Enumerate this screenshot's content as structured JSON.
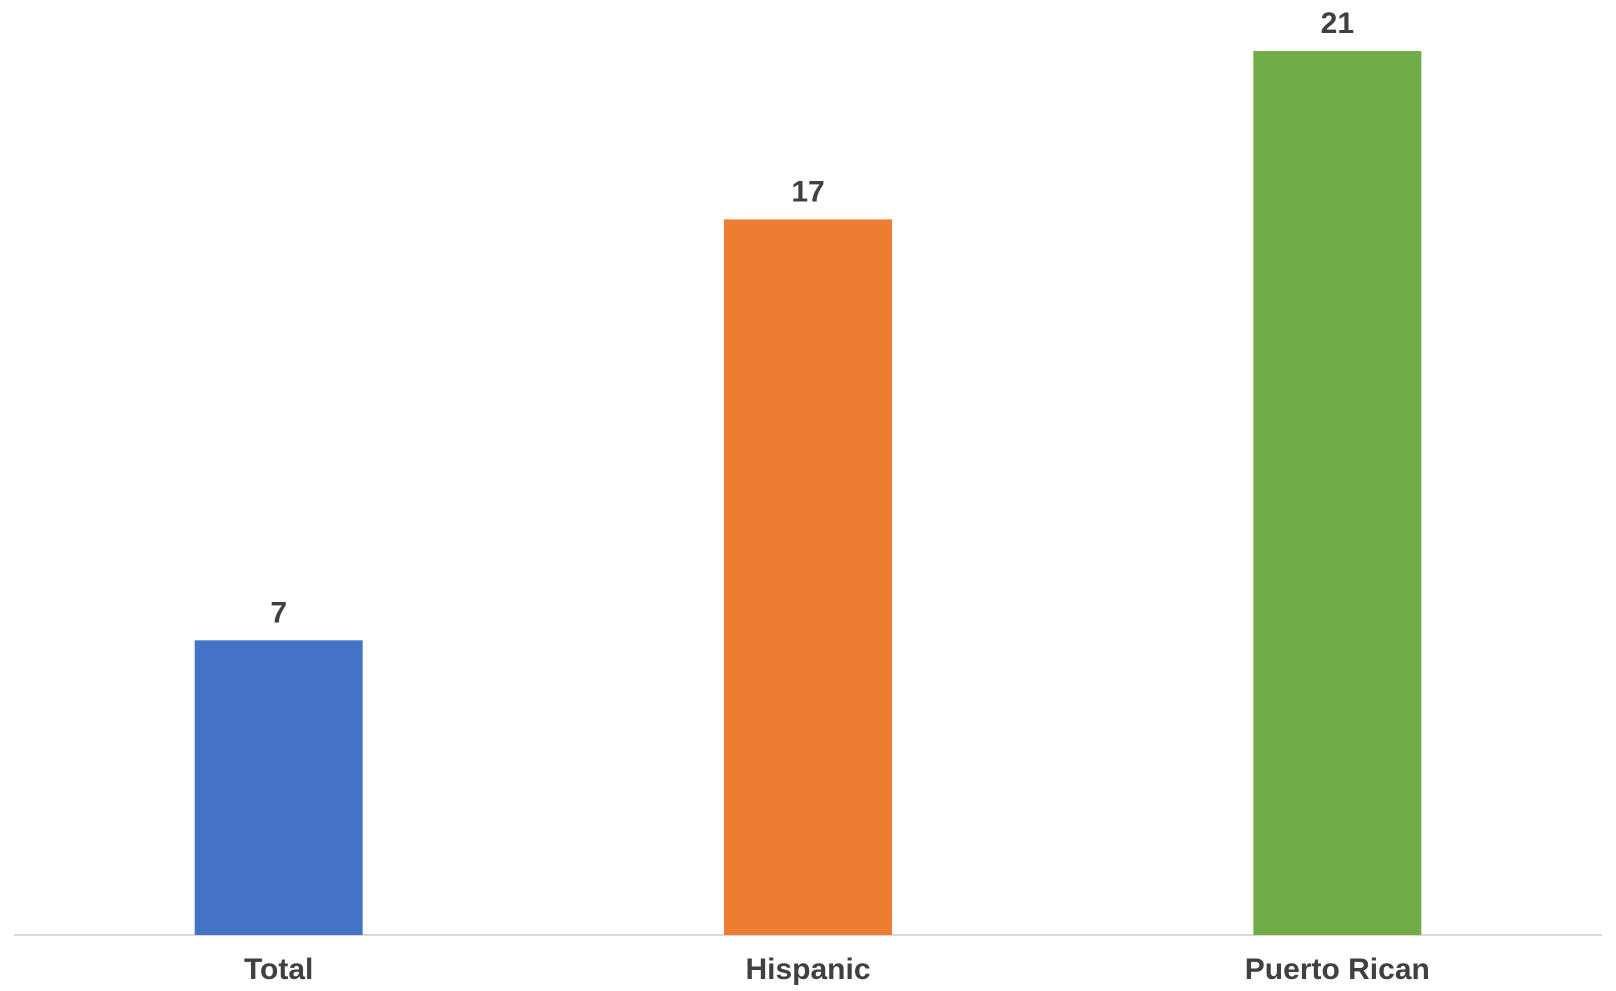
{
  "chart_data": {
    "type": "bar",
    "categories": [
      "Total",
      "Hispanic",
      "Puerto Rican"
    ],
    "values": [
      7,
      17,
      21
    ],
    "data_labels": [
      "7",
      "17",
      "21"
    ],
    "colors": [
      "#4472C4",
      "#ED7D31",
      "#70AD47"
    ],
    "title": "",
    "xlabel": "",
    "ylabel": "",
    "ylim": [
      0,
      21
    ],
    "grid": false,
    "legend": "none",
    "axis_color": "#D9D9D9",
    "label_color": "#404040"
  }
}
